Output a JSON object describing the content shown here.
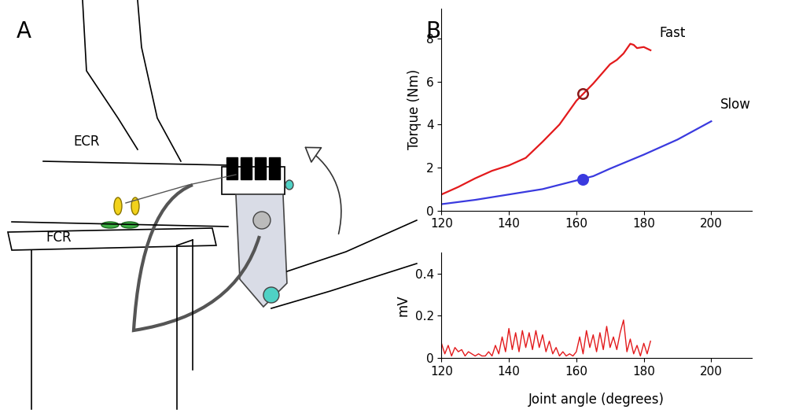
{
  "panel_labels": [
    "A",
    "B"
  ],
  "diagram": {
    "muscle_labels": [
      "ECR",
      "FCR"
    ]
  },
  "chart_data": [
    {
      "type": "line",
      "ylabel": "Torque (Nm)",
      "xlim": [
        120,
        212
      ],
      "xticks": [
        120,
        140,
        160,
        180,
        200
      ],
      "ylim": [
        0,
        9.4
      ],
      "yticks": [
        0,
        2,
        4,
        6,
        8
      ],
      "series": [
        {
          "name": "Fast",
          "color": "#e31a1c",
          "x": [
            120,
            125,
            130,
            135,
            140,
            145,
            150,
            155,
            160,
            165,
            170,
            172,
            174,
            176,
            177,
            178,
            180,
            182
          ],
          "values": [
            0.75,
            1.1,
            1.5,
            1.85,
            2.1,
            2.45,
            3.2,
            4.0,
            5.1,
            5.9,
            6.8,
            7.0,
            7.3,
            7.75,
            7.7,
            7.55,
            7.6,
            7.45
          ],
          "highlight": {
            "x": 162,
            "y": 5.45,
            "color": "#8b1a1a",
            "marker": "open circle"
          }
        },
        {
          "name": "Slow",
          "color": "#3a3adf",
          "x": [
            120,
            130,
            140,
            150,
            160,
            165,
            170,
            180,
            190,
            200
          ],
          "values": [
            0.3,
            0.5,
            0.75,
            1.0,
            1.4,
            1.6,
            1.95,
            2.6,
            3.3,
            4.15
          ],
          "highlight": {
            "x": 162,
            "y": 1.45,
            "color": "#3a3adf",
            "marker": "circle"
          }
        }
      ]
    },
    {
      "type": "line",
      "xlabel": "Joint angle (degrees)",
      "ylabel": "mV",
      "xlim": [
        120,
        212
      ],
      "xticks": [
        120,
        140,
        160,
        180,
        200
      ],
      "ylim": [
        0,
        0.5
      ],
      "yticks": [
        0,
        0.2,
        0.4
      ],
      "series": [
        {
          "color": "#e31a1c",
          "x": [
            120,
            121,
            122,
            123,
            124,
            125,
            126,
            127,
            128,
            129,
            130,
            131,
            132,
            133,
            134,
            135,
            136,
            137,
            138,
            139,
            140,
            141,
            142,
            143,
            144,
            145,
            146,
            147,
            148,
            149,
            150,
            151,
            152,
            153,
            154,
            155,
            156,
            157,
            158,
            159,
            160,
            161,
            162,
            163,
            164,
            165,
            166,
            167,
            168,
            169,
            170,
            171,
            172,
            173,
            174,
            175,
            176,
            177,
            178,
            179,
            180,
            181,
            182
          ],
          "values": [
            0.07,
            0.02,
            0.06,
            0.01,
            0.05,
            0.03,
            0.04,
            0.01,
            0.03,
            0.02,
            0.01,
            0.02,
            0.01,
            0.01,
            0.03,
            0.01,
            0.06,
            0.02,
            0.1,
            0.03,
            0.14,
            0.04,
            0.12,
            0.03,
            0.13,
            0.05,
            0.12,
            0.04,
            0.13,
            0.05,
            0.11,
            0.03,
            0.08,
            0.02,
            0.05,
            0.01,
            0.03,
            0.01,
            0.02,
            0.01,
            0.03,
            0.1,
            0.02,
            0.13,
            0.05,
            0.11,
            0.03,
            0.12,
            0.04,
            0.15,
            0.05,
            0.1,
            0.04,
            0.12,
            0.18,
            0.03,
            0.09,
            0.02,
            0.06,
            0.01,
            0.07,
            0.02,
            0.08
          ]
        }
      ]
    }
  ]
}
